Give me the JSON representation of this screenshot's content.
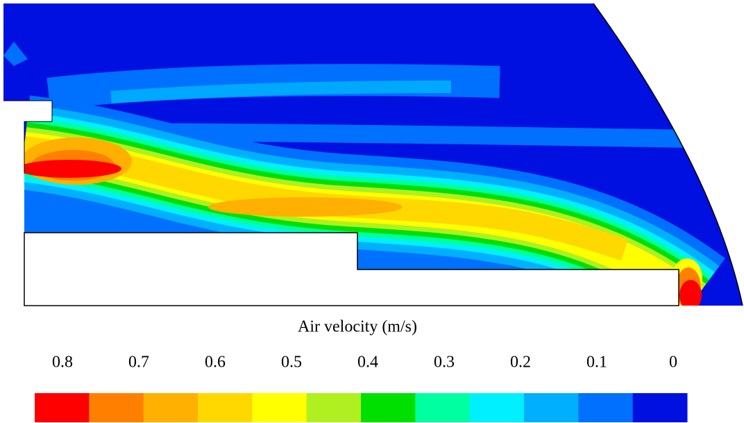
{
  "chart_data": {
    "type": "contour",
    "colorbar_title": "Air velocity (m/s)",
    "clim": [
      0.8,
      0
    ],
    "ticks": [
      0.8,
      0.7,
      0.6,
      0.5,
      0.4,
      0.3,
      0.2,
      0.1,
      0
    ],
    "colors": [
      "#ff0000",
      "#ff8000",
      "#ffb000",
      "#ffd800",
      "#ffff00",
      "#b0f020",
      "#00e000",
      "#00ffa0",
      "#00f0ff",
      "#00b0ff",
      "#0070ff",
      "#0010e0"
    ]
  }
}
